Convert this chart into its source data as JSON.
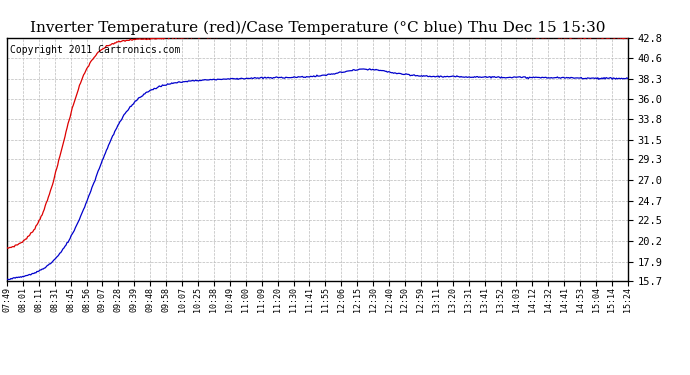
{
  "title": "Inverter Temperature (red)/Case Temperature (°C blue) Thu Dec 15 15:30",
  "copyright": "Copyright 2011 Cartronics.com",
  "yticks": [
    15.7,
    17.9,
    20.2,
    22.5,
    24.7,
    27.0,
    29.3,
    31.5,
    33.8,
    36.0,
    38.3,
    40.6,
    42.8
  ],
  "ymin": 15.7,
  "ymax": 42.8,
  "xtick_labels": [
    "07:49",
    "08:01",
    "08:11",
    "08:31",
    "08:45",
    "08:56",
    "09:07",
    "09:28",
    "09:39",
    "09:48",
    "09:58",
    "10:07",
    "10:25",
    "10:38",
    "10:49",
    "11:00",
    "11:09",
    "11:20",
    "11:30",
    "11:41",
    "11:55",
    "12:06",
    "12:15",
    "12:30",
    "12:40",
    "12:50",
    "12:59",
    "13:11",
    "13:20",
    "13:31",
    "13:41",
    "13:52",
    "14:03",
    "14:12",
    "14:32",
    "14:41",
    "14:53",
    "15:04",
    "15:14",
    "15:24"
  ],
  "bg_color": "#ffffff",
  "grid_color": "#bbbbbb",
  "red_line_color": "#dd0000",
  "blue_line_color": "#0000cc",
  "title_fontsize": 11,
  "copyright_fontsize": 7
}
